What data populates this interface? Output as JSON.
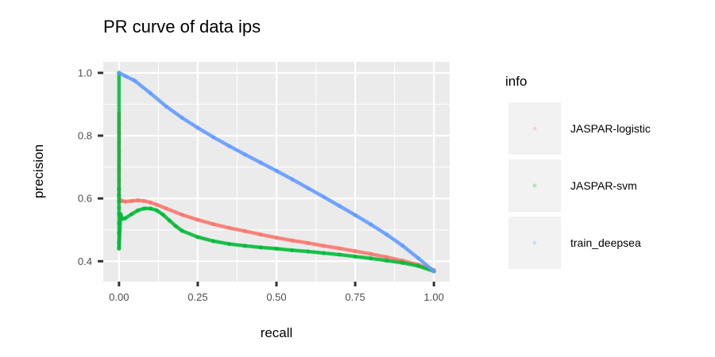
{
  "chart_data": {
    "type": "scatter",
    "title": "PR curve of data ips",
    "xlabel": "recall",
    "ylabel": "precision",
    "xlim": [
      -0.05,
      1.05
    ],
    "ylim": [
      0.335,
      1.035
    ],
    "xticks": [
      0,
      0.25,
      0.5,
      0.75,
      1
    ],
    "xtick_labels": [
      "0.00",
      "0.25",
      "0.50",
      "0.75",
      "1.00"
    ],
    "yticks": [
      0.4,
      0.6,
      0.8,
      1.0
    ],
    "ytick_labels": [
      "0.4",
      "0.6",
      "0.8",
      "1.0"
    ],
    "grid": true,
    "legend": {
      "title": "info",
      "position": "right"
    },
    "series": [
      {
        "name": "JASPAR-logistic",
        "color": "#F8766D",
        "x": [
          0,
          0,
          0,
          0,
          0,
          0,
          0,
          0,
          0,
          0,
          0,
          0.005,
          0.01,
          0.02,
          0.04,
          0.06,
          0.08,
          0.1,
          0.12,
          0.15,
          0.2,
          0.25,
          0.3,
          0.35,
          0.4,
          0.45,
          0.5,
          0.55,
          0.6,
          0.65,
          0.7,
          0.75,
          0.8,
          0.85,
          0.9,
          0.95,
          1.0
        ],
        "y": [
          0.87,
          0.84,
          0.81,
          0.78,
          0.75,
          0.72,
          0.69,
          0.66,
          0.63,
          0.61,
          0.6,
          0.595,
          0.592,
          0.59,
          0.592,
          0.594,
          0.592,
          0.587,
          0.58,
          0.568,
          0.548,
          0.532,
          0.518,
          0.506,
          0.496,
          0.485,
          0.475,
          0.466,
          0.458,
          0.449,
          0.441,
          0.432,
          0.423,
          0.413,
          0.402,
          0.389,
          0.372
        ]
      },
      {
        "name": "JASPAR-svm",
        "color": "#00BA38",
        "x": [
          0,
          0,
          0,
          0,
          0,
          0,
          0,
          0,
          0,
          0,
          0.005,
          0.01,
          0.02,
          0.04,
          0.06,
          0.08,
          0.1,
          0.12,
          0.14,
          0.16,
          0.18,
          0.2,
          0.25,
          0.3,
          0.35,
          0.4,
          0.45,
          0.5,
          0.55,
          0.6,
          0.65,
          0.7,
          0.75,
          0.8,
          0.85,
          0.9,
          0.95,
          1.0
        ],
        "y": [
          1.0,
          0.63,
          0.61,
          0.59,
          0.57,
          0.55,
          0.52,
          0.49,
          0.46,
          0.44,
          0.55,
          0.535,
          0.537,
          0.55,
          0.562,
          0.568,
          0.568,
          0.562,
          0.548,
          0.53,
          0.512,
          0.497,
          0.477,
          0.464,
          0.455,
          0.449,
          0.444,
          0.44,
          0.435,
          0.431,
          0.426,
          0.421,
          0.415,
          0.409,
          0.402,
          0.395,
          0.385,
          0.368
        ]
      },
      {
        "name": "train_deepsea",
        "color": "#619CFF",
        "x": [
          0,
          0.02,
          0.05,
          0.1,
          0.15,
          0.2,
          0.25,
          0.3,
          0.35,
          0.4,
          0.45,
          0.5,
          0.55,
          0.6,
          0.65,
          0.7,
          0.75,
          0.8,
          0.85,
          0.9,
          0.95,
          1.0
        ],
        "y": [
          1.0,
          0.99,
          0.975,
          0.935,
          0.893,
          0.857,
          0.825,
          0.795,
          0.767,
          0.74,
          0.714,
          0.688,
          0.661,
          0.633,
          0.605,
          0.576,
          0.547,
          0.517,
          0.485,
          0.45,
          0.41,
          0.368
        ]
      }
    ]
  }
}
